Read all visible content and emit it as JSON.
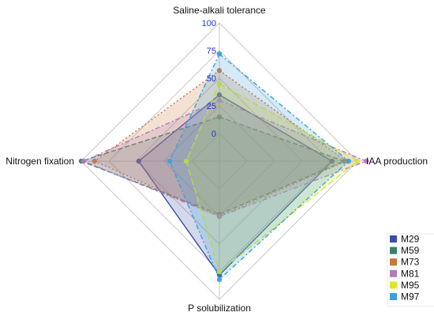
{
  "chart_data": {
    "type": "radar",
    "axes": [
      "Saline-alkali tolerance",
      "IAA production",
      "P solubilization",
      "Nitrogen fixation"
    ],
    "r_ticks": [
      "0",
      "25",
      "50",
      "75",
      "100"
    ],
    "r_range": [
      -25,
      100
    ],
    "legend_position": "bottom-right",
    "series": [
      {
        "name": "M29",
        "color": "#3a4fa6",
        "values": [
          35,
          77,
          78,
          48
        ]
      },
      {
        "name": "M59",
        "color": "#3a7f6b",
        "values": [
          15,
          88,
          23,
          100
        ]
      },
      {
        "name": "M73",
        "color": "#c8773a",
        "values": [
          57,
          90,
          25,
          88
        ]
      },
      {
        "name": "M81",
        "color": "#b07bb8",
        "values": [
          30,
          108,
          25,
          98
        ]
      },
      {
        "name": "M95",
        "color": "#d9e82a",
        "values": [
          45,
          100,
          75,
          5
        ]
      },
      {
        "name": "M97",
        "color": "#3fa0d8",
        "values": [
          72,
          92,
          82,
          20
        ]
      }
    ]
  }
}
